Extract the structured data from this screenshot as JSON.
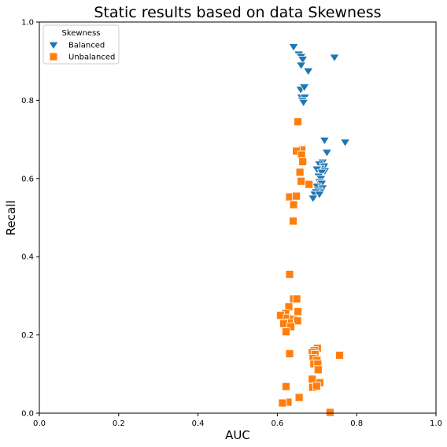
{
  "chart_data": {
    "type": "scatter",
    "title": "Static results based on data Skewness",
    "xlabel": "AUC",
    "ylabel": "Recall",
    "xlim": [
      0.0,
      1.0
    ],
    "ylim": [
      0.0,
      1.0
    ],
    "xticks": [
      "0.0",
      "0.2",
      "0.4",
      "0.6",
      "0.8",
      "1.0"
    ],
    "yticks": [
      "0.0",
      "0.2",
      "0.4",
      "0.6",
      "0.8",
      "1.0"
    ],
    "grid": false,
    "legend": {
      "title": "Skewness",
      "placement": "top-left"
    },
    "series": [
      {
        "name": "Balanced",
        "marker": "triangle-down",
        "color": "#1f77b4",
        "points": [
          [
            0.641,
            0.937
          ],
          [
            0.654,
            0.918
          ],
          [
            0.66,
            0.912
          ],
          [
            0.664,
            0.905
          ],
          [
            0.66,
            0.89
          ],
          [
            0.678,
            0.875
          ],
          [
            0.744,
            0.91
          ],
          [
            0.659,
            0.828
          ],
          [
            0.668,
            0.834
          ],
          [
            0.661,
            0.808
          ],
          [
            0.669,
            0.808
          ],
          [
            0.663,
            0.8
          ],
          [
            0.666,
            0.795
          ],
          [
            0.719,
            0.698
          ],
          [
            0.771,
            0.693
          ],
          [
            0.725,
            0.667
          ],
          [
            0.714,
            0.642
          ],
          [
            0.706,
            0.637
          ],
          [
            0.718,
            0.632
          ],
          [
            0.708,
            0.626
          ],
          [
            0.7,
            0.624
          ],
          [
            0.72,
            0.62
          ],
          [
            0.712,
            0.616
          ],
          [
            0.704,
            0.606
          ],
          [
            0.71,
            0.6
          ],
          [
            0.706,
            0.592
          ],
          [
            0.712,
            0.588
          ],
          [
            0.7,
            0.58
          ],
          [
            0.714,
            0.576
          ],
          [
            0.703,
            0.57
          ],
          [
            0.709,
            0.566
          ],
          [
            0.697,
            0.566
          ],
          [
            0.694,
            0.56
          ],
          [
            0.706,
            0.56
          ],
          [
            0.69,
            0.55
          ]
        ]
      },
      {
        "name": "Unbalanced",
        "marker": "square",
        "color": "#ff7f0e",
        "points": [
          [
            0.652,
            0.745
          ],
          [
            0.662,
            0.673
          ],
          [
            0.648,
            0.67
          ],
          [
            0.661,
            0.66
          ],
          [
            0.664,
            0.643
          ],
          [
            0.657,
            0.616
          ],
          [
            0.66,
            0.593
          ],
          [
            0.68,
            0.585
          ],
          [
            0.631,
            0.553
          ],
          [
            0.648,
            0.555
          ],
          [
            0.641,
            0.533
          ],
          [
            0.64,
            0.491
          ],
          [
            0.631,
            0.355
          ],
          [
            0.641,
            0.292
          ],
          [
            0.649,
            0.292
          ],
          [
            0.629,
            0.272
          ],
          [
            0.652,
            0.26
          ],
          [
            0.621,
            0.255
          ],
          [
            0.608,
            0.25
          ],
          [
            0.625,
            0.243
          ],
          [
            0.64,
            0.24
          ],
          [
            0.651,
            0.236
          ],
          [
            0.63,
            0.231
          ],
          [
            0.616,
            0.229
          ],
          [
            0.634,
            0.221
          ],
          [
            0.622,
            0.208
          ],
          [
            0.631,
            0.152
          ],
          [
            0.701,
            0.166
          ],
          [
            0.693,
            0.16
          ],
          [
            0.688,
            0.155
          ],
          [
            0.695,
            0.15
          ],
          [
            0.757,
            0.148
          ],
          [
            0.69,
            0.14
          ],
          [
            0.7,
            0.135
          ],
          [
            0.692,
            0.126
          ],
          [
            0.702,
            0.126
          ],
          [
            0.703,
            0.111
          ],
          [
            0.688,
            0.087
          ],
          [
            0.707,
            0.078
          ],
          [
            0.689,
            0.066
          ],
          [
            0.699,
            0.069
          ],
          [
            0.622,
            0.068
          ],
          [
            0.655,
            0.04
          ],
          [
            0.627,
            0.028
          ],
          [
            0.613,
            0.026
          ],
          [
            0.733,
            0.002
          ]
        ]
      }
    ]
  }
}
